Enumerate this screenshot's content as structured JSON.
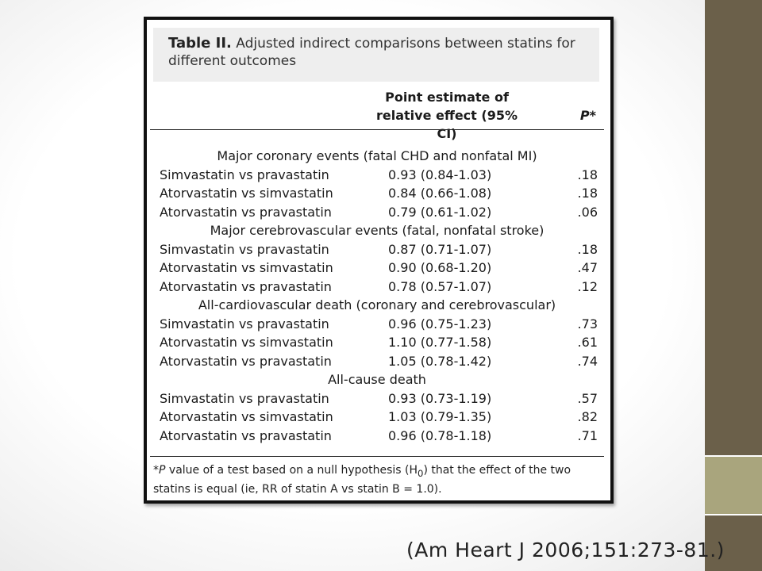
{
  "table": {
    "title_label": "Table II.",
    "title_text": "Adjusted indirect comparisons between statins for different outcomes",
    "col_estimate": "Point estimate of relative effect (95% CI)",
    "col_estimate_line1": "Point estimate of",
    "col_estimate_line2": "relative effect (95% CI)",
    "col_p": "P*",
    "sections": [
      {
        "label": "Major coronary events (fatal CHD and nonfatal MI)",
        "rows": [
          {
            "comparison": "Simvastatin vs pravastatin",
            "estimate": "0.93 (0.84-1.03)",
            "p": ".18"
          },
          {
            "comparison": "Atorvastatin vs simvastatin",
            "estimate": "0.84 (0.66-1.08)",
            "p": ".18"
          },
          {
            "comparison": "Atorvastatin vs pravastatin",
            "estimate": "0.79 (0.61-1.02)",
            "p": ".06"
          }
        ]
      },
      {
        "label": "Major cerebrovascular events (fatal, nonfatal stroke)",
        "rows": [
          {
            "comparison": "Simvastatin vs pravastatin",
            "estimate": "0.87 (0.71-1.07)",
            "p": ".18"
          },
          {
            "comparison": "Atorvastatin vs simvastatin",
            "estimate": "0.90 (0.68-1.20)",
            "p": ".47"
          },
          {
            "comparison": "Atorvastatin vs pravastatin",
            "estimate": "0.78 (0.57-1.07)",
            "p": ".12"
          }
        ]
      },
      {
        "label": "All-cardiovascular death (coronary and cerebrovascular)",
        "rows": [
          {
            "comparison": "Simvastatin vs pravastatin",
            "estimate": "0.96 (0.75-1.23)",
            "p": ".73"
          },
          {
            "comparison": "Atorvastatin vs simvastatin",
            "estimate": "1.10 (0.77-1.58)",
            "p": ".61"
          },
          {
            "comparison": "Atorvastatin vs pravastatin",
            "estimate": "1.05 (0.78-1.42)",
            "p": ".74"
          }
        ]
      },
      {
        "label": "All-cause death",
        "rows": [
          {
            "comparison": "Simvastatin vs pravastatin",
            "estimate": "0.93 (0.73-1.19)",
            "p": ".57"
          },
          {
            "comparison": "Atorvastatin vs simvastatin",
            "estimate": "1.03 (0.79-1.35)",
            "p": ".82"
          },
          {
            "comparison": "Atorvastatin vs pravastatin",
            "estimate": "0.96 (0.78-1.18)",
            "p": ".71"
          }
        ]
      }
    ],
    "footnote_star": "*",
    "footnote_p": "P",
    "footnote_text": " value of a test based on a null hypothesis (H",
    "footnote_sub": "0",
    "footnote_text2": ") that the effect of the two statins is equal (ie, RR of statin A vs statin B = 1.0)."
  },
  "citation": "(Am Heart J 2006;151:273-81.)",
  "colors": {
    "sidebar_dark": "#6b604a",
    "sidebar_light": "#a9a57d",
    "title_bg": "#eeeeee"
  }
}
